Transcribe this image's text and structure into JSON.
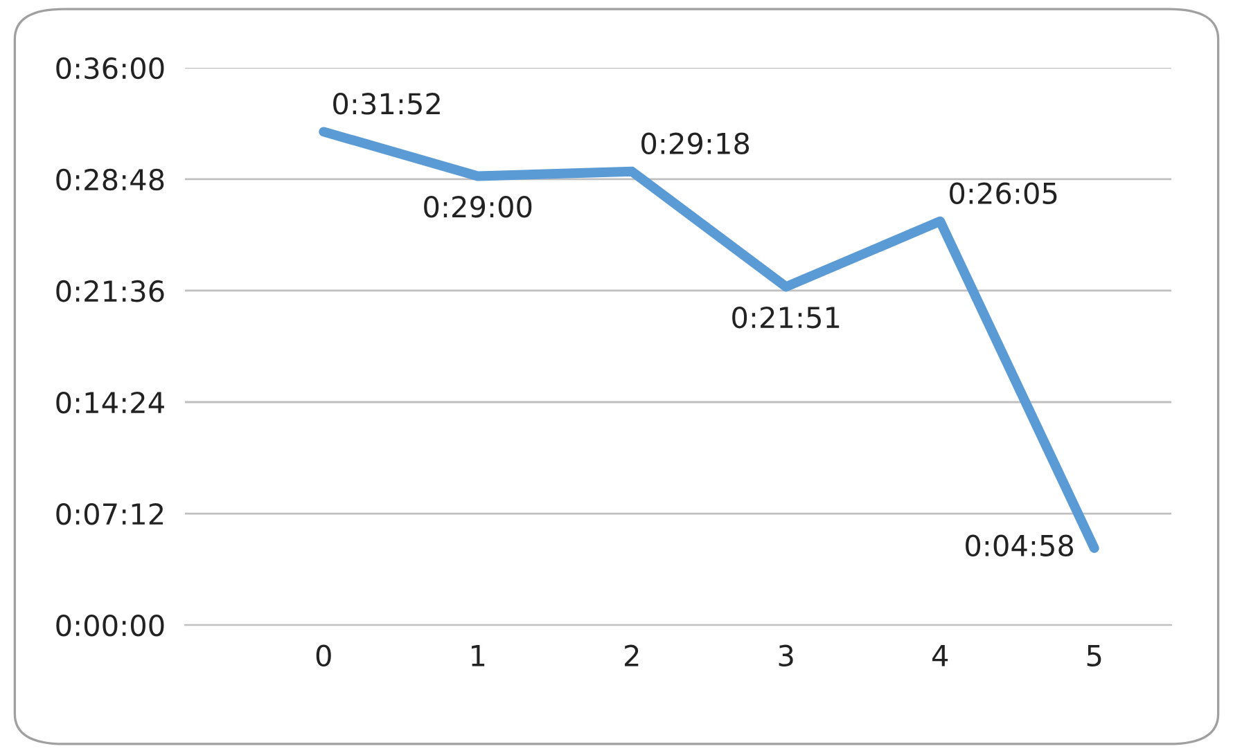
{
  "chart_data": {
    "type": "line",
    "categories": [
      "0",
      "1",
      "2",
      "3",
      "4",
      "5"
    ],
    "series": [
      {
        "color": "#5b9bd5",
        "values": [
          31.867,
          29.0,
          29.3,
          21.85,
          26.083,
          4.967
        ],
        "value_labels": [
          "0:31:52",
          "0:29:00",
          "0:29:18",
          "0:21:51",
          "0:26:05",
          "0:04:58"
        ]
      }
    ],
    "ylim": [
      0,
      36
    ],
    "yticks": [
      {
        "value": 0,
        "label": "0:00:00"
      },
      {
        "value": 7.2,
        "label": "0:07:12"
      },
      {
        "value": 14.4,
        "label": "0:14:24"
      },
      {
        "value": 21.6,
        "label": "0:21:36"
      },
      {
        "value": 28.8,
        "label": "0:28:48"
      },
      {
        "value": 36,
        "label": "0:36:00"
      }
    ],
    "grid": "y",
    "marker": "none",
    "line_style": "solid",
    "legend": false
  }
}
